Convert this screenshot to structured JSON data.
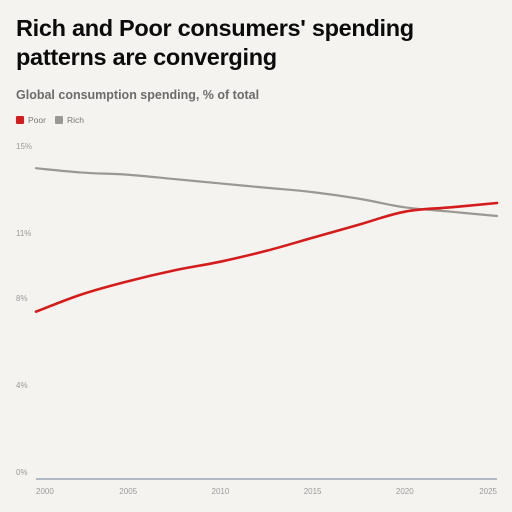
{
  "header": {
    "title": "Rich and Poor consumers' spending patterns are converging",
    "subtitle": "Global consumption spending, % of total"
  },
  "colors": {
    "poor": "#d41c1c",
    "rich": "#9b9893",
    "axis": "#6b7f99",
    "background": "#f5f3ef"
  },
  "chart_data": {
    "type": "line",
    "title": "Rich and Poor consumers' spending patterns are converging",
    "subtitle": "Global consumption spending, % of total",
    "xlabel": "",
    "ylabel": "",
    "xlim": [
      2000,
      2025
    ],
    "ylim": [
      0,
      15
    ],
    "x_ticks": [
      2000,
      2005,
      2010,
      2015,
      2020,
      2025
    ],
    "y_ticks": [
      0,
      4,
      8,
      11,
      15
    ],
    "y_tick_labels": [
      "0%",
      "4%",
      "8%",
      "11%",
      "15%"
    ],
    "grid": false,
    "legend_position": "top-left",
    "x": [
      2000,
      2002.5,
      2005,
      2007.5,
      2010,
      2012.5,
      2015,
      2017.5,
      2020,
      2022.5,
      2025
    ],
    "series": [
      {
        "name": "Poor",
        "color": "#d41c1c",
        "values": [
          7.7,
          8.5,
          9.1,
          9.6,
          10.0,
          10.5,
          11.1,
          11.7,
          12.3,
          12.5,
          12.7
        ]
      },
      {
        "name": "Rich",
        "color": "#9b9893",
        "values": [
          14.3,
          14.1,
          14.0,
          13.8,
          13.6,
          13.4,
          13.2,
          12.9,
          12.5,
          12.3,
          12.1
        ]
      }
    ]
  }
}
